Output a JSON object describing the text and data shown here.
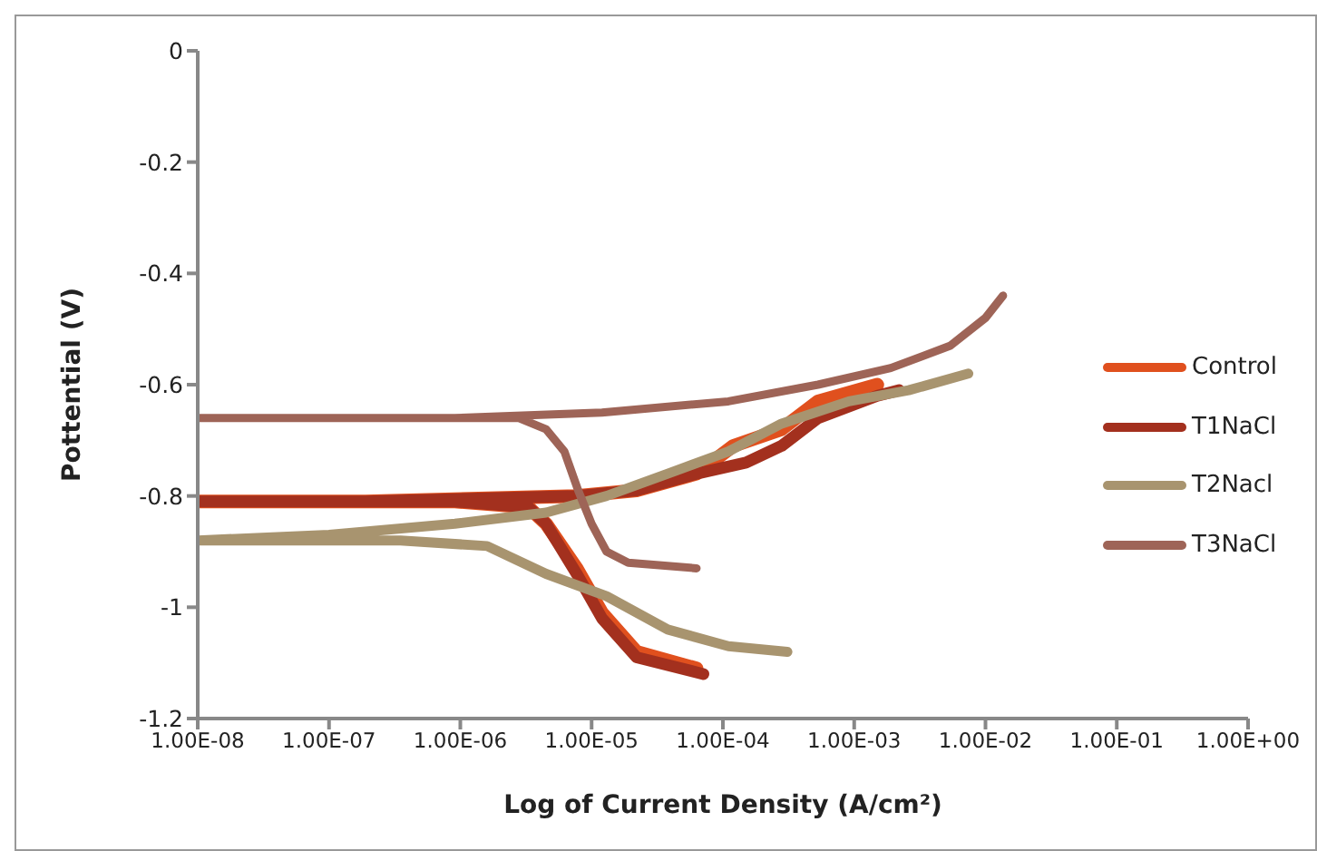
{
  "chart_data": {
    "type": "line",
    "xlabel": "Log of Current Density (A/cm²)",
    "ylabel": "Pottential (V)",
    "log": "x",
    "legend": "right",
    "marker": "none",
    "line_style": "solid",
    "xlim": [
      1e-08,
      1
    ],
    "ylim": [
      -1.2,
      0
    ],
    "xticks": [
      {
        "value": 1e-08,
        "label": "1.00E-08"
      },
      {
        "value": 1e-07,
        "label": "1.00E-07"
      },
      {
        "value": 1e-06,
        "label": "1.00E-06"
      },
      {
        "value": 1e-05,
        "label": "1.00E-05"
      },
      {
        "value": 0.0001,
        "label": "1.00E-04"
      },
      {
        "value": 0.001,
        "label": "1.00E-03"
      },
      {
        "value": 0.01,
        "label": "1.00E-02"
      },
      {
        "value": 0.1,
        "label": "1.00E-01"
      },
      {
        "value": 1,
        "label": "1.00E+00"
      }
    ],
    "yticks": [
      0,
      -0.2,
      -0.4,
      -0.6,
      -0.8,
      -1,
      -1.2
    ],
    "series": [
      {
        "name": "Control",
        "color": "#e0501e",
        "x": [
          6.3e-05,
          2.2e-05,
          1.2e-05,
          7.7e-06,
          4.5e-06,
          3.3e-06,
          9.1e-07,
          1e-08,
          1.9e-07,
          7.7e-06,
          2.2e-05,
          6.3e-05,
          0.00012,
          0.00028,
          0.00053,
          0.0015
        ],
        "values": [
          -1.11,
          -1.08,
          -1.01,
          -0.93,
          -0.85,
          -0.82,
          -0.81,
          -0.81,
          -0.81,
          -0.8,
          -0.79,
          -0.76,
          -0.71,
          -0.68,
          -0.63,
          -0.6
        ]
      },
      {
        "name": "T1NaCl",
        "color": "#a3301e",
        "x": [
          7.1e-05,
          2.2e-05,
          1.2e-05,
          7.7e-06,
          4.5e-06,
          3.3e-06,
          9.1e-07,
          1e-08,
          1.9e-07,
          7.7e-06,
          2.2e-05,
          6.3e-05,
          0.00015,
          0.00028,
          0.00053,
          0.0015,
          0.0022
        ],
        "values": [
          -1.12,
          -1.09,
          -1.02,
          -0.94,
          -0.85,
          -0.82,
          -0.81,
          -0.81,
          -0.81,
          -0.8,
          -0.79,
          -0.76,
          -0.74,
          -0.71,
          -0.66,
          -0.62,
          -0.61
        ]
      },
      {
        "name": "T2Nacl",
        "color": "#a8946f",
        "x": [
          0.00031,
          0.00011,
          3.8e-05,
          1.3e-05,
          4.5e-06,
          1.6e-06,
          3.5e-07,
          1e-08,
          1e-07,
          9.1e-07,
          4.5e-06,
          1.3e-05,
          3.8e-05,
          0.00011,
          0.00028,
          0.00091,
          0.0026,
          0.0074
        ],
        "values": [
          -1.08,
          -1.07,
          -1.04,
          -0.98,
          -0.94,
          -0.89,
          -0.88,
          -0.88,
          -0.87,
          -0.85,
          -0.83,
          -0.8,
          -0.76,
          -0.72,
          -0.67,
          -0.63,
          -0.61,
          -0.58
        ]
      },
      {
        "name": "T3NaCl",
        "color": "#9e6457",
        "x": [
          6.3e-05,
          1.9e-05,
          1.3e-05,
          1e-05,
          7.9e-06,
          6.2e-06,
          4.5e-06,
          2.8e-06,
          1.9e-07,
          1e-08,
          9.1e-07,
          1.2e-05,
          0.00011,
          0.00053,
          0.0019,
          0.0054,
          0.01,
          0.0136
        ],
        "values": [
          -0.93,
          -0.92,
          -0.9,
          -0.85,
          -0.79,
          -0.72,
          -0.68,
          -0.66,
          -0.66,
          -0.66,
          -0.66,
          -0.65,
          -0.63,
          -0.6,
          -0.57,
          -0.53,
          -0.48,
          -0.44
        ]
      }
    ]
  }
}
